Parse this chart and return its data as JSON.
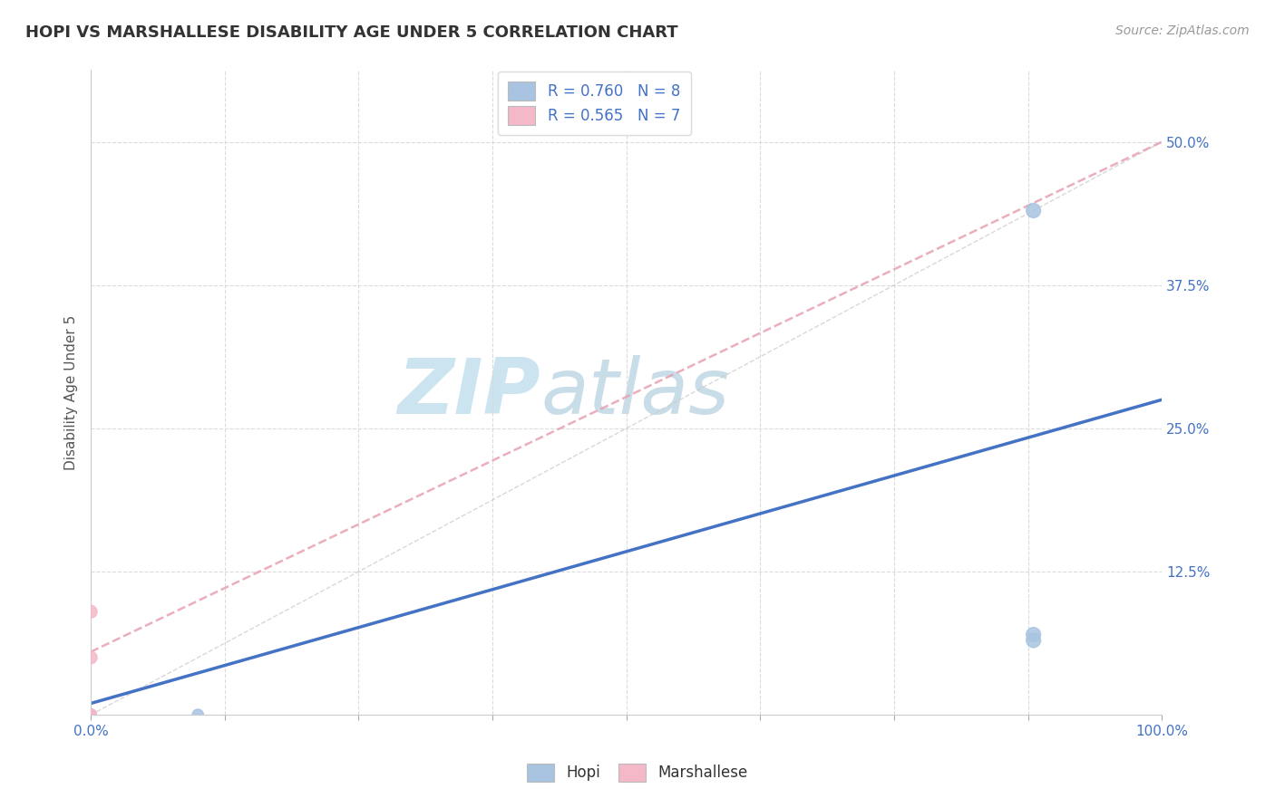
{
  "title": "HOPI VS MARSHALLESE DISABILITY AGE UNDER 5 CORRELATION CHART",
  "source_text": "Source: ZipAtlas.com",
  "ylabel": "Disability Age Under 5",
  "xlim": [
    0.0,
    1.0
  ],
  "ylim": [
    0.0,
    0.5625
  ],
  "xticks": [
    0.0,
    0.125,
    0.25,
    0.375,
    0.5,
    0.625,
    0.75,
    0.875,
    1.0
  ],
  "yticks": [
    0.0,
    0.125,
    0.25,
    0.375,
    0.5
  ],
  "xtick_labels": [
    "0.0%",
    "",
    "",
    "",
    "",
    "",
    "",
    "",
    "100.0%"
  ],
  "ytick_labels": [
    "",
    "12.5%",
    "25.0%",
    "37.5%",
    "50.0%"
  ],
  "hopi_x": [
    0.0,
    0.0,
    0.0,
    0.0,
    0.1,
    0.88,
    0.88,
    0.88
  ],
  "hopi_y": [
    0.0,
    0.0,
    0.0,
    0.0,
    0.0,
    0.07,
    0.065,
    0.44
  ],
  "marshallese_x": [
    0.0,
    0.0,
    0.0,
    0.0,
    0.0,
    0.0,
    0.0
  ],
  "marshallese_y": [
    0.0,
    0.0,
    0.0,
    0.0,
    0.0,
    0.05,
    0.09
  ],
  "hopi_scatter_sizes": [
    80,
    80,
    80,
    80,
    80,
    130,
    130,
    130
  ],
  "marsh_scatter_sizes": [
    80,
    80,
    80,
    80,
    80,
    100,
    100
  ],
  "hopi_color": "#a8c4e0",
  "marshallese_color": "#f4b8c8",
  "hopi_R": 0.76,
  "hopi_N": 8,
  "marshallese_R": 0.565,
  "marshallese_N": 7,
  "hopi_line_color": "#4472c4",
  "marshallese_line_color": "#e8a0b0",
  "ref_line_color": "#c8c8c8",
  "watermark_zip_color": "#cce4f0",
  "watermark_atlas_color": "#c8dde8",
  "background_color": "#ffffff",
  "grid_color": "#d8d8d8",
  "title_color": "#333333",
  "source_color": "#999999",
  "tick_label_color": "#4472c4",
  "ylabel_color": "#555555",
  "legend_label_color": "#333333",
  "legend_stat_color": "#4472c4"
}
